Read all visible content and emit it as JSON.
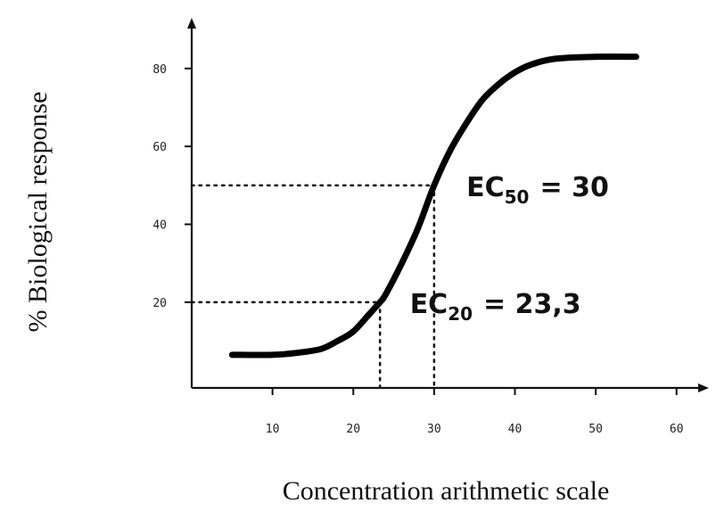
{
  "chart_data": {
    "type": "line",
    "xlabel": "Concentration  arithmetic scale",
    "ylabel": "% Biological response",
    "xlim": [
      0,
      64
    ],
    "ylim": [
      -2,
      93
    ],
    "xticks": [
      10,
      20,
      30,
      40,
      50,
      60
    ],
    "yticks": [
      20,
      40,
      60,
      80
    ],
    "grid": false,
    "series": [
      {
        "x": [
          5,
          10,
          13,
          16,
          18,
          20,
          22,
          23.3,
          24,
          26,
          28,
          30,
          32,
          34,
          36,
          38,
          40,
          42,
          45,
          50,
          55
        ],
        "y": [
          6.5,
          6.5,
          7,
          8,
          10,
          12.5,
          17,
          20,
          22,
          30,
          39,
          50,
          59,
          66,
          72,
          76,
          79,
          81,
          82.5,
          83,
          83
        ]
      }
    ],
    "reference_lines": [
      {
        "y": 50,
        "x": 30
      },
      {
        "y": 20,
        "x": 23.3
      }
    ],
    "annotations": [
      {
        "label": "EC",
        "subscript": "50",
        "value": "= 30",
        "x": 34,
        "y": 50
      },
      {
        "label": "EC",
        "subscript": "20",
        "value": "= 23,3",
        "x": 27,
        "y": 20
      }
    ]
  }
}
